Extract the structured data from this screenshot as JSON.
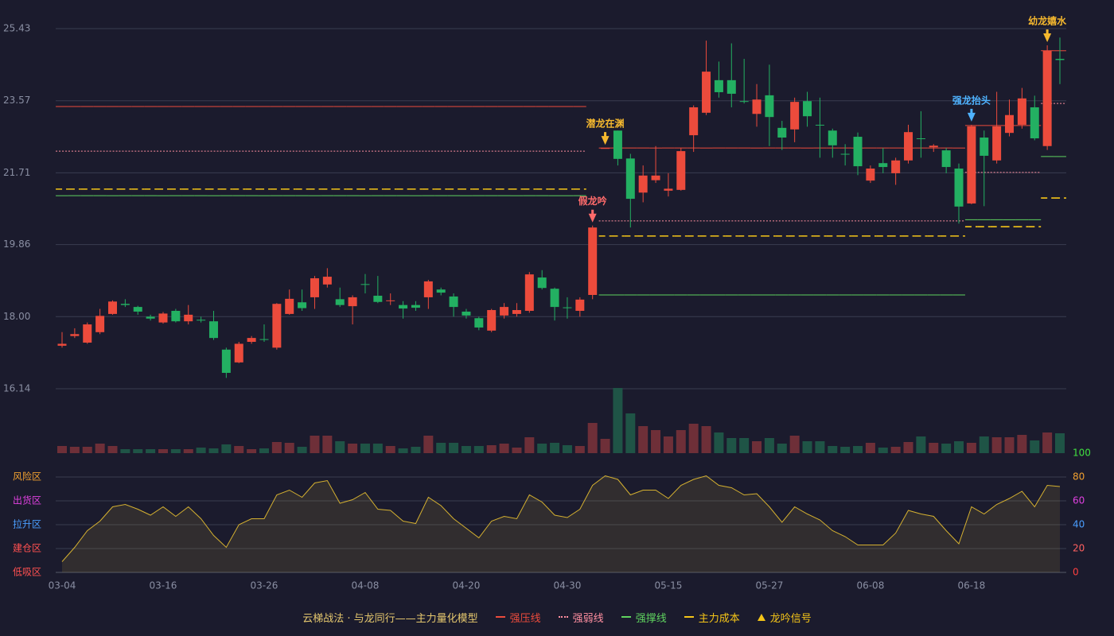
{
  "chart_data": {
    "type": "candlestick",
    "categories": [
      "03-04",
      null,
      null,
      null,
      null,
      null,
      null,
      null,
      "03-16",
      null,
      null,
      null,
      null,
      null,
      null,
      null,
      "03-26",
      null,
      null,
      null,
      null,
      null,
      null,
      null,
      "04-08",
      null,
      null,
      null,
      null,
      null,
      null,
      null,
      "04-20",
      null,
      null,
      null,
      null,
      null,
      null,
      null,
      "04-30",
      null,
      null,
      null,
      null,
      null,
      null,
      null,
      "05-15",
      null,
      null,
      null,
      null,
      null,
      null,
      null,
      "05-27",
      null,
      null,
      null,
      null,
      null,
      null,
      null,
      "06-08",
      null,
      null,
      null,
      null,
      null,
      null,
      null,
      "06-18",
      null,
      null,
      null,
      null,
      null,
      null,
      null
    ],
    "open": [
      17.25,
      17.5,
      17.33,
      17.6,
      18.07,
      18.33,
      18.25,
      18.0,
      17.85,
      18.15,
      17.88,
      17.92,
      17.88,
      17.15,
      16.82,
      17.35,
      17.42,
      17.2,
      18.07,
      18.37,
      18.5,
      18.83,
      18.45,
      18.27,
      18.84,
      18.54,
      18.4,
      18.3,
      18.3,
      18.5,
      18.7,
      18.52,
      18.13,
      17.96,
      17.64,
      18.03,
      18.07,
      18.15,
      19.01,
      18.72,
      18.24,
      18.15,
      18.56,
      22.35,
      22.8,
      22.08,
      21.2,
      21.52,
      21.25,
      21.27,
      22.68,
      23.26,
      24.1,
      24.1,
      23.56,
      23.23,
      23.71,
      22.87,
      22.83,
      23.56,
      22.95,
      22.8,
      22.2,
      22.64,
      21.51,
      21.96,
      21.7,
      22.03,
      22.6,
      22.37,
      22.29,
      21.82,
      20.92,
      22.62,
      22.03,
      22.74,
      22.95,
      23.4,
      22.4,
      24.65
    ],
    "close": [
      17.3,
      17.55,
      17.8,
      18.02,
      18.39,
      18.3,
      18.13,
      17.95,
      18.08,
      17.88,
      18.05,
      17.9,
      17.45,
      16.55,
      17.3,
      17.45,
      17.4,
      18.33,
      18.46,
      18.22,
      18.99,
      19.03,
      18.3,
      18.5,
      18.82,
      18.38,
      18.42,
      18.21,
      18.23,
      18.91,
      18.62,
      18.25,
      18.03,
      17.72,
      18.17,
      18.25,
      18.17,
      19.09,
      18.74,
      18.25,
      18.23,
      18.44,
      20.3,
      22.35,
      22.07,
      21.04,
      21.64,
      21.64,
      21.3,
      22.27,
      23.4,
      24.32,
      23.79,
      23.75,
      23.54,
      23.6,
      23.15,
      22.62,
      23.54,
      23.17,
      22.94,
      22.42,
      22.19,
      21.88,
      21.82,
      21.86,
      22.03,
      22.76,
      22.58,
      22.41,
      21.86,
      20.84,
      22.91,
      22.15,
      22.91,
      23.2,
      23.63,
      22.6,
      24.86,
      24.62
    ],
    "high": [
      17.6,
      17.7,
      17.85,
      18.2,
      18.42,
      18.45,
      18.28,
      18.05,
      18.12,
      18.2,
      18.3,
      18.0,
      18.15,
      17.2,
      17.35,
      17.5,
      17.8,
      18.35,
      18.7,
      18.7,
      19.05,
      19.25,
      18.75,
      18.55,
      19.1,
      19.05,
      18.6,
      18.4,
      18.4,
      18.95,
      18.75,
      18.6,
      18.2,
      18.0,
      18.2,
      18.35,
      18.35,
      19.15,
      19.2,
      18.75,
      18.5,
      18.5,
      20.35,
      22.35,
      22.8,
      22.2,
      21.9,
      22.4,
      21.7,
      22.35,
      23.45,
      25.12,
      24.58,
      25.05,
      24.65,
      24.0,
      24.5,
      23.05,
      23.65,
      23.8,
      23.65,
      22.85,
      22.45,
      22.75,
      21.9,
      22.35,
      22.1,
      22.95,
      23.3,
      22.45,
      22.35,
      21.95,
      22.95,
      22.8,
      23.8,
      23.6,
      23.9,
      23.7,
      25.0,
      25.2
    ],
    "low": [
      17.2,
      17.45,
      17.3,
      17.55,
      18.05,
      18.25,
      18.05,
      17.9,
      17.82,
      17.85,
      17.8,
      17.85,
      17.4,
      16.42,
      16.8,
      17.3,
      17.35,
      17.15,
      18.05,
      18.15,
      18.2,
      18.75,
      18.25,
      17.8,
      18.6,
      18.35,
      18.3,
      17.95,
      18.15,
      18.2,
      18.55,
      18.0,
      17.95,
      17.65,
      17.6,
      17.95,
      18.0,
      18.1,
      18.7,
      17.9,
      17.95,
      18.0,
      18.45,
      22.35,
      21.9,
      20.3,
      20.95,
      21.45,
      21.1,
      21.25,
      22.25,
      23.2,
      23.65,
      23.4,
      23.5,
      22.9,
      22.4,
      22.3,
      22.5,
      22.9,
      22.1,
      22.1,
      21.9,
      21.65,
      21.45,
      21.7,
      21.4,
      21.95,
      22.1,
      22.25,
      21.7,
      20.4,
      20.9,
      20.85,
      21.95,
      22.65,
      22.85,
      22.55,
      22.3,
      24.0
    ],
    "up_color": "#ec4b3c",
    "down_color": "#23b062",
    "ylim": [
      16.14,
      25.43
    ],
    "yticks": [
      25.43,
      23.57,
      21.71,
      19.86,
      {
        "value": 18,
        "label": "18.00"
      },
      16.14
    ],
    "grid": true,
    "levels": [
      {
        "name": "强压线",
        "color": "#ec4b3c",
        "style": "solid",
        "values": [
          23.42,
          23.42,
          23.42,
          23.42,
          23.42,
          23.42,
          23.42,
          23.42,
          23.42,
          23.42,
          23.42,
          23.42,
          23.42,
          23.42,
          23.42,
          23.42,
          23.42,
          23.42,
          23.42,
          23.42,
          23.42,
          23.42,
          23.42,
          23.42,
          23.42,
          23.42,
          23.42,
          23.42,
          23.42,
          23.42,
          23.42,
          23.42,
          23.42,
          23.42,
          23.42,
          23.42,
          23.42,
          23.42,
          23.42,
          23.42,
          23.42,
          23.42,
          null,
          22.35,
          22.35,
          22.35,
          22.35,
          22.35,
          22.35,
          22.35,
          22.35,
          22.35,
          22.35,
          22.35,
          22.35,
          22.35,
          22.35,
          22.35,
          22.35,
          22.35,
          22.35,
          22.35,
          22.35,
          22.35,
          22.35,
          22.35,
          22.35,
          22.35,
          22.35,
          22.35,
          22.35,
          22.35,
          22.93,
          22.93,
          22.93,
          22.93,
          22.93,
          22.93,
          24.86,
          24.86
        ]
      },
      {
        "name": "强弱线",
        "color": "#ff8fa0",
        "style": "dotted",
        "values": [
          22.27,
          22.27,
          22.27,
          22.27,
          22.27,
          22.27,
          22.27,
          22.27,
          22.27,
          22.27,
          22.27,
          22.27,
          22.27,
          22.27,
          22.27,
          22.27,
          22.27,
          22.27,
          22.27,
          22.27,
          22.27,
          22.27,
          22.27,
          22.27,
          22.27,
          22.27,
          22.27,
          22.27,
          22.27,
          22.27,
          22.27,
          22.27,
          22.27,
          22.27,
          22.27,
          22.27,
          22.27,
          22.27,
          22.27,
          22.27,
          22.27,
          22.27,
          null,
          20.47,
          20.47,
          20.47,
          20.47,
          20.47,
          20.47,
          20.47,
          20.47,
          20.47,
          20.47,
          20.47,
          20.47,
          20.47,
          20.47,
          20.47,
          20.47,
          20.47,
          20.47,
          20.47,
          20.47,
          20.47,
          20.47,
          20.47,
          20.47,
          20.47,
          20.47,
          20.47,
          20.47,
          20.47,
          21.72,
          21.72,
          21.72,
          21.72,
          21.72,
          21.72,
          23.5,
          23.5
        ]
      },
      {
        "name": "强撑线",
        "color": "#5fd35f",
        "style": "solid",
        "values": [
          21.12,
          21.12,
          21.12,
          21.12,
          21.12,
          21.12,
          21.12,
          21.12,
          21.12,
          21.12,
          21.12,
          21.12,
          21.12,
          21.12,
          21.12,
          21.12,
          21.12,
          21.12,
          21.12,
          21.12,
          21.12,
          21.12,
          21.12,
          21.12,
          21.12,
          21.12,
          21.12,
          21.12,
          21.12,
          21.12,
          21.12,
          21.12,
          21.12,
          21.12,
          21.12,
          21.12,
          21.12,
          21.12,
          21.12,
          21.12,
          21.12,
          21.12,
          null,
          18.56,
          18.56,
          18.56,
          18.56,
          18.56,
          18.56,
          18.56,
          18.56,
          18.56,
          18.56,
          18.56,
          18.56,
          18.56,
          18.56,
          18.56,
          18.56,
          18.56,
          18.56,
          18.56,
          18.56,
          18.56,
          18.56,
          18.56,
          18.56,
          18.56,
          18.56,
          18.56,
          18.56,
          18.56,
          20.5,
          20.5,
          20.5,
          20.5,
          20.5,
          20.5,
          22.13,
          22.13
        ]
      },
      {
        "name": "主力成本",
        "color": "#f5c518",
        "style": "dashed",
        "values": [
          21.29,
          21.29,
          21.29,
          21.29,
          21.29,
          21.29,
          21.29,
          21.29,
          21.29,
          21.29,
          21.29,
          21.29,
          21.29,
          21.29,
          21.29,
          21.29,
          21.29,
          21.29,
          21.29,
          21.29,
          21.29,
          21.29,
          21.29,
          21.29,
          21.29,
          21.29,
          21.29,
          21.29,
          21.29,
          21.29,
          21.29,
          21.29,
          21.29,
          21.29,
          21.29,
          21.29,
          21.29,
          21.29,
          21.29,
          21.29,
          21.29,
          21.29,
          null,
          20.08,
          20.08,
          20.08,
          20.08,
          20.08,
          20.08,
          20.08,
          20.08,
          20.08,
          20.08,
          20.08,
          20.08,
          20.08,
          20.08,
          20.08,
          20.08,
          20.08,
          20.08,
          20.08,
          20.08,
          20.08,
          20.08,
          20.08,
          20.08,
          20.08,
          20.08,
          20.08,
          20.08,
          20.08,
          20.32,
          20.32,
          20.32,
          20.32,
          20.32,
          20.32,
          21.06,
          21.06
        ]
      }
    ],
    "signal_legend": "龙吟信号",
    "signal_legend_color": "#f5c518",
    "signals": [
      {
        "index": 42,
        "label": "假龙吟",
        "color": "#ff6b6b"
      },
      {
        "index": 43,
        "label": "潜龙在渊",
        "color": "#f5b82e"
      },
      {
        "index": 72,
        "label": "强龙抬头",
        "color": "#4fb3ff"
      },
      {
        "index": 78,
        "label": "幼龙嬉水",
        "color": "#f5b82e"
      }
    ],
    "volume": {
      "ylim": [
        0,
        82
      ],
      "up_color": "#6e2f38",
      "down_color": "#1f5446",
      "values": [
        9,
        8,
        8,
        12,
        9,
        5,
        5,
        5,
        5,
        5,
        5,
        7,
        6,
        11,
        9,
        5,
        6,
        14,
        13,
        8,
        22,
        22,
        15,
        12,
        12,
        12,
        9,
        6,
        8,
        22,
        13,
        13,
        9,
        9,
        10,
        12,
        7,
        20,
        12,
        13,
        10,
        9,
        38,
        18,
        82,
        50,
        34,
        29,
        21,
        29,
        37,
        34,
        26,
        19,
        19,
        15,
        19,
        12,
        22,
        15,
        15,
        9,
        8,
        9,
        13,
        7,
        8,
        14,
        21,
        13,
        12,
        15,
        13,
        21,
        20,
        20,
        23,
        16,
        26,
        25
      ]
    },
    "indicator": {
      "type": "line",
      "color": "#d4b030",
      "ylim": [
        0,
        100
      ],
      "yticks": [
        0,
        20,
        40,
        60,
        80,
        100
      ],
      "ytick_colors": [
        "#ff4040",
        "#ff6060",
        "#4a9eff",
        "#e040e0",
        "#f0a030",
        "#40e040"
      ],
      "zones": [
        {
          "label": "风险区",
          "value": 80,
          "color": "#f0a030"
        },
        {
          "label": "出货区",
          "value": 60,
          "color": "#e040e0"
        },
        {
          "label": "拉升区",
          "value": 40,
          "color": "#4a9eff"
        },
        {
          "label": "建仓区",
          "value": 20,
          "color": "#ff5050"
        },
        {
          "label": "低吸区",
          "value": 0,
          "color": "#ff5050"
        }
      ],
      "values": [
        9,
        21,
        35,
        43,
        55,
        57,
        53,
        48,
        55,
        47,
        55,
        45,
        31,
        21,
        40,
        45,
        45,
        65,
        69,
        63,
        75,
        77,
        58,
        61,
        67,
        53,
        52,
        43,
        41,
        63,
        56,
        45,
        37,
        29,
        43,
        47,
        45,
        65,
        59,
        48,
        46,
        53,
        73,
        81,
        78,
        65,
        69,
        69,
        62,
        73,
        78,
        81,
        73,
        71,
        65,
        66,
        55,
        42,
        55,
        49,
        44,
        35,
        30,
        23,
        23,
        23,
        33,
        52,
        49,
        47,
        35,
        24,
        55,
        49,
        57,
        62,
        68,
        55,
        73,
        72
      ]
    },
    "legend_title": "云梯战法 · 与龙同行——主力量化模型"
  }
}
